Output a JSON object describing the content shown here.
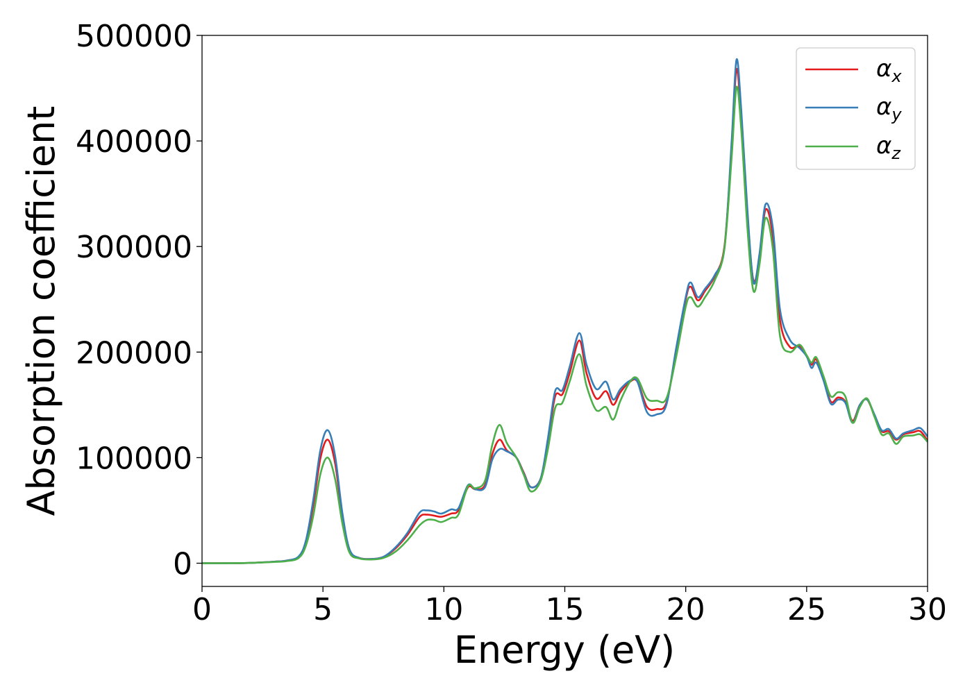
{
  "chart_data": {
    "type": "line",
    "xlabel": "Energy (eV)",
    "ylabel": "Absorption coefficient",
    "xlim": [
      0,
      30
    ],
    "ylim": [
      -22000,
      500000
    ],
    "xticks": [
      0,
      5,
      10,
      15,
      20,
      25,
      30
    ],
    "xtick_labels": [
      "0",
      "5",
      "10",
      "15",
      "20",
      "25",
      "30"
    ],
    "yticks": [
      0,
      100000,
      200000,
      300000,
      400000,
      500000
    ],
    "ytick_labels": [
      "0",
      "100000",
      "200000",
      "300000",
      "400000",
      "500000"
    ],
    "grid": false,
    "legend_position": "top-right",
    "x": [
      0,
      1,
      2,
      3,
      3.5,
      4,
      4.3,
      4.6,
      4.9,
      5.2,
      5.5,
      5.8,
      6.1,
      6.5,
      7,
      7.5,
      8,
      8.5,
      9,
      9.3,
      9.6,
      9.9,
      10.3,
      10.6,
      11,
      11.3,
      11.7,
      12,
      12.3,
      12.6,
      13,
      13.3,
      13.6,
      14,
      14.3,
      14.6,
      14.9,
      15.2,
      15.6,
      15.9,
      16.3,
      16.7,
      17,
      17.3,
      17.7,
      18,
      18.4,
      18.8,
      19.2,
      19.6,
      20,
      20.2,
      20.5,
      20.8,
      21.2,
      21.6,
      21.9,
      22.1,
      22.3,
      22.55,
      22.8,
      23.05,
      23.3,
      23.6,
      23.9,
      24.3,
      24.7,
      25,
      25.2,
      25.4,
      25.7,
      26,
      26.3,
      26.6,
      26.9,
      27.2,
      27.5,
      27.8,
      28.1,
      28.4,
      28.7,
      29,
      29.4,
      29.7,
      30
    ],
    "series": [
      {
        "name": "αx",
        "sub": "x",
        "color": "#e41a1c",
        "values": [
          0,
          0,
          300,
          1500,
          2500,
          6000,
          20000,
          55000,
          100000,
          117000,
          95000,
          45000,
          12000,
          5000,
          4000,
          6000,
          14000,
          27000,
          44000,
          46000,
          45000,
          44000,
          47000,
          50000,
          72000,
          70000,
          74000,
          103000,
          117000,
          107000,
          100000,
          86000,
          72000,
          80000,
          115000,
          158000,
          160000,
          180000,
          211000,
          180000,
          156000,
          163000,
          150000,
          162000,
          172000,
          172000,
          148000,
          146000,
          152000,
          200000,
          250000,
          262000,
          249000,
          258000,
          272000,
          300000,
          395000,
          468000,
          420000,
          330000,
          268000,
          290000,
          335000,
          310000,
          230000,
          205000,
          206000,
          196000,
          188000,
          193000,
          175000,
          153000,
          157000,
          153000,
          135000,
          150000,
          155000,
          140000,
          125000,
          125000,
          117000,
          122000,
          124000,
          125000,
          116000
        ]
      },
      {
        "name": "αy",
        "sub": "y",
        "color": "#377eb8",
        "values": [
          0,
          0,
          300,
          1500,
          2500,
          6500,
          22000,
          60000,
          108000,
          126000,
          102000,
          48000,
          13000,
          5000,
          4000,
          6000,
          15000,
          29000,
          48000,
          50000,
          49000,
          47000,
          51000,
          52000,
          74000,
          70000,
          72000,
          98000,
          108000,
          106000,
          100000,
          85000,
          72000,
          80000,
          118000,
          163000,
          164000,
          186000,
          218000,
          188000,
          165000,
          172000,
          155000,
          165000,
          173000,
          172000,
          143000,
          141000,
          150000,
          203000,
          252000,
          266000,
          252000,
          260000,
          273000,
          298000,
          400000,
          477000,
          428000,
          335000,
          266000,
          293000,
          340000,
          318000,
          240000,
          212000,
          204000,
          196000,
          185000,
          190000,
          173000,
          151000,
          155000,
          152000,
          133000,
          150000,
          155000,
          141000,
          126000,
          127000,
          118000,
          123000,
          126000,
          128000,
          120000
        ]
      },
      {
        "name": "αz",
        "sub": "z",
        "color": "#4daf4a",
        "values": [
          0,
          0,
          300,
          1200,
          2000,
          5000,
          17000,
          45000,
          85000,
          100000,
          80000,
          38000,
          10000,
          4500,
          3500,
          5000,
          11000,
          22000,
          36000,
          41000,
          41000,
          39000,
          43000,
          46000,
          73000,
          71000,
          78000,
          112000,
          131000,
          114000,
          100000,
          84000,
          68000,
          78000,
          108000,
          147000,
          152000,
          172000,
          198000,
          168000,
          145000,
          148000,
          136000,
          154000,
          172000,
          175000,
          156000,
          154000,
          156000,
          195000,
          243000,
          252000,
          243000,
          252000,
          268000,
          298000,
          385000,
          451000,
          410000,
          318000,
          258000,
          283000,
          327000,
          298000,
          215000,
          200000,
          207000,
          197000,
          190000,
          195000,
          177000,
          158000,
          162000,
          158000,
          133000,
          148000,
          156000,
          139000,
          122000,
          123000,
          113000,
          120000,
          121000,
          122000,
          115000
        ]
      }
    ]
  }
}
